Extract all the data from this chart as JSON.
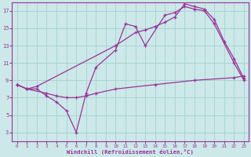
{
  "bg_color": "#cce8e8",
  "grid_color": "#aad4d4",
  "line_color": "#993399",
  "xlabel": "Windchill (Refroidissement éolien,°C)",
  "xlim": [
    -0.5,
    23.5
  ],
  "ylim": [
    2.0,
    18.0
  ],
  "xticks": [
    0,
    1,
    2,
    3,
    4,
    5,
    6,
    7,
    8,
    9,
    10,
    11,
    12,
    13,
    14,
    15,
    16,
    17,
    18,
    19,
    20,
    21,
    22,
    23
  ],
  "yticks": [
    3,
    5,
    7,
    9,
    11,
    13,
    15,
    17
  ],
  "line1_x": [
    0,
    1,
    2,
    3,
    4,
    5,
    6,
    7,
    8,
    10,
    11,
    12,
    13,
    15,
    16,
    17,
    18,
    19,
    20,
    22,
    23
  ],
  "line1_y": [
    8.5,
    8.0,
    8.0,
    7.2,
    6.5,
    5.5,
    3.0,
    7.5,
    10.5,
    12.5,
    15.5,
    15.2,
    13.0,
    16.5,
    16.8,
    17.5,
    17.2,
    17.0,
    15.5,
    11.0,
    9.0
  ],
  "line2_x": [
    0,
    1,
    2,
    10,
    12,
    13,
    14,
    15,
    16,
    17,
    18,
    19,
    20,
    21,
    22,
    23
  ],
  "line2_y": [
    8.5,
    8.0,
    8.3,
    13.0,
    14.5,
    14.8,
    15.2,
    15.7,
    16.3,
    17.8,
    17.5,
    17.2,
    16.0,
    13.5,
    11.5,
    9.2
  ],
  "line3_x": [
    0,
    1,
    3,
    4,
    5,
    6,
    7,
    8,
    10,
    14,
    18,
    22,
    23
  ],
  "line3_y": [
    8.5,
    8.0,
    7.5,
    7.2,
    7.0,
    7.0,
    7.2,
    7.5,
    8.0,
    8.5,
    9.0,
    9.3,
    9.5
  ]
}
